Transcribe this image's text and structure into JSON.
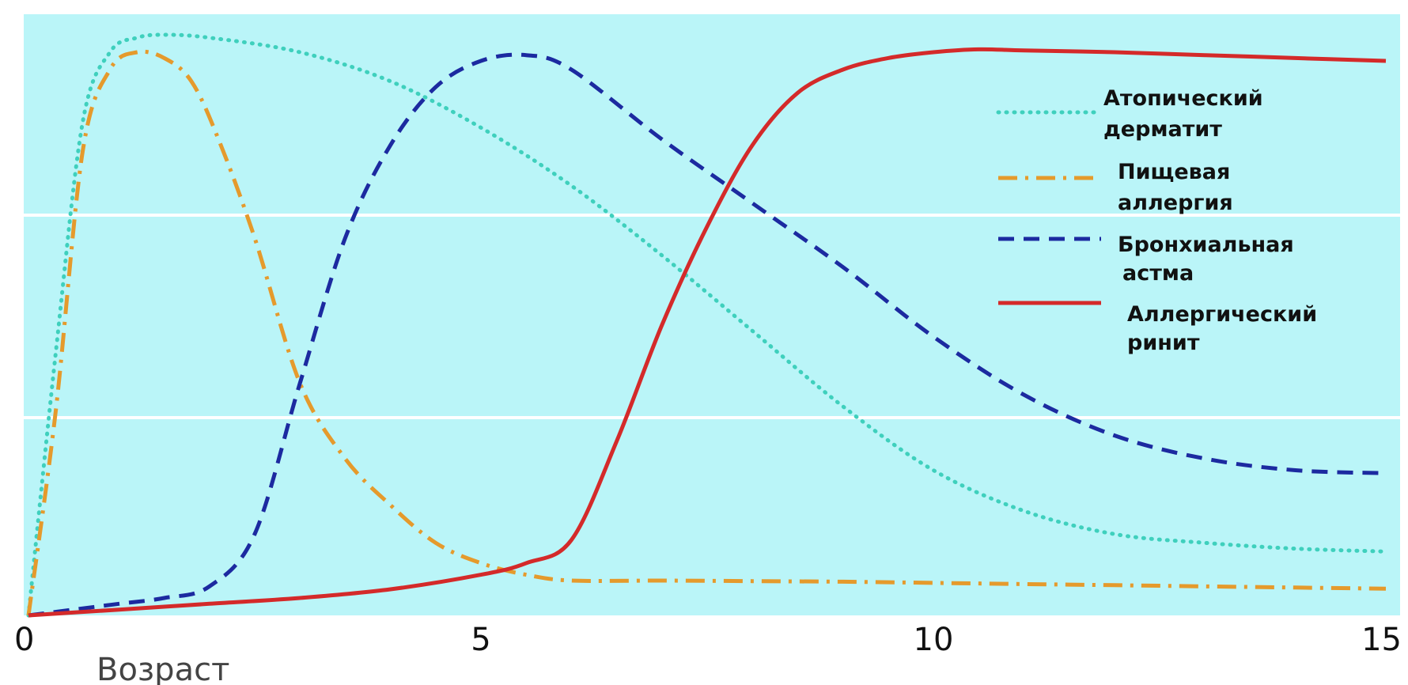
{
  "chart_data": {
    "type": "line",
    "title": "",
    "xlabel": "Возраст",
    "ylabel": "",
    "xlim": [
      0,
      15
    ],
    "ylim": [
      0,
      100
    ],
    "x_ticks": [
      "0",
      "5",
      "10",
      "15"
    ],
    "grid": "horizontal",
    "legend_position": "right",
    "background_color": "#baf5f8",
    "series": [
      {
        "name_lines": [
          "Атопический",
          "дерматит"
        ],
        "color": "#3fd0bd",
        "style": "dotted",
        "points": [
          [
            0,
            0
          ],
          [
            0.3,
            45
          ],
          [
            0.6,
            85
          ],
          [
            0.9,
            97
          ],
          [
            1.2,
            99.5
          ],
          [
            1.5,
            100
          ],
          [
            2,
            99.5
          ],
          [
            3,
            97
          ],
          [
            4,
            92
          ],
          [
            5,
            84
          ],
          [
            6,
            74
          ],
          [
            7,
            62
          ],
          [
            8,
            49
          ],
          [
            9,
            36
          ],
          [
            10,
            25
          ],
          [
            11,
            18
          ],
          [
            12,
            14
          ],
          [
            13,
            12.5
          ],
          [
            14,
            11.5
          ],
          [
            15,
            11
          ]
        ]
      },
      {
        "name_lines": [
          "Пищевая",
          "аллергия"
        ],
        "color": "#e59a2c",
        "style": "dash-dot",
        "points": [
          [
            0,
            0
          ],
          [
            0.3,
            35
          ],
          [
            0.6,
            80
          ],
          [
            0.9,
            94
          ],
          [
            1.2,
            97
          ],
          [
            1.5,
            96
          ],
          [
            1.8,
            92
          ],
          [
            2.1,
            82
          ],
          [
            2.5,
            65
          ],
          [
            3,
            40
          ],
          [
            3.5,
            27
          ],
          [
            4,
            19
          ],
          [
            4.5,
            12.5
          ],
          [
            5,
            9
          ],
          [
            5.5,
            7
          ],
          [
            6,
            6
          ],
          [
            7,
            6
          ],
          [
            8,
            5.9
          ],
          [
            9,
            5.8
          ],
          [
            10,
            5.6
          ],
          [
            11,
            5.4
          ],
          [
            12,
            5.2
          ],
          [
            13,
            5
          ],
          [
            14,
            4.8
          ],
          [
            15,
            4.6
          ]
        ]
      },
      {
        "name_lines": [
          "Бронхиальная",
          "астма"
        ],
        "color": "#1c2aa0",
        "style": "dashed",
        "points": [
          [
            0,
            0
          ],
          [
            0.5,
            1
          ],
          [
            1,
            2
          ],
          [
            1.5,
            3
          ],
          [
            2,
            5
          ],
          [
            2.5,
            14
          ],
          [
            3,
            40
          ],
          [
            3.5,
            65
          ],
          [
            4,
            81
          ],
          [
            4.5,
            91
          ],
          [
            5,
            95.5
          ],
          [
            5.5,
            96.5
          ],
          [
            6,
            94
          ],
          [
            7,
            82
          ],
          [
            8,
            71
          ],
          [
            9,
            60
          ],
          [
            10,
            48
          ],
          [
            11,
            38
          ],
          [
            12,
            31
          ],
          [
            13,
            27
          ],
          [
            14,
            25
          ],
          [
            15,
            24.5
          ]
        ]
      },
      {
        "name_lines": [
          "Аллергический",
          "ринит"
        ],
        "color": "#d42a2a",
        "style": "solid",
        "points": [
          [
            0,
            0
          ],
          [
            1,
            1
          ],
          [
            2,
            2
          ],
          [
            3,
            3
          ],
          [
            4,
            4.5
          ],
          [
            5,
            7
          ],
          [
            5.5,
            9
          ],
          [
            6,
            13
          ],
          [
            6.5,
            30
          ],
          [
            7,
            50
          ],
          [
            7.5,
            67
          ],
          [
            8,
            81
          ],
          [
            8.5,
            90
          ],
          [
            9,
            94
          ],
          [
            9.5,
            96
          ],
          [
            10,
            97
          ],
          [
            10.5,
            97.5
          ],
          [
            11,
            97.3
          ],
          [
            12,
            97
          ],
          [
            13,
            96.5
          ],
          [
            14,
            96
          ],
          [
            15,
            95.5
          ]
        ]
      }
    ]
  }
}
